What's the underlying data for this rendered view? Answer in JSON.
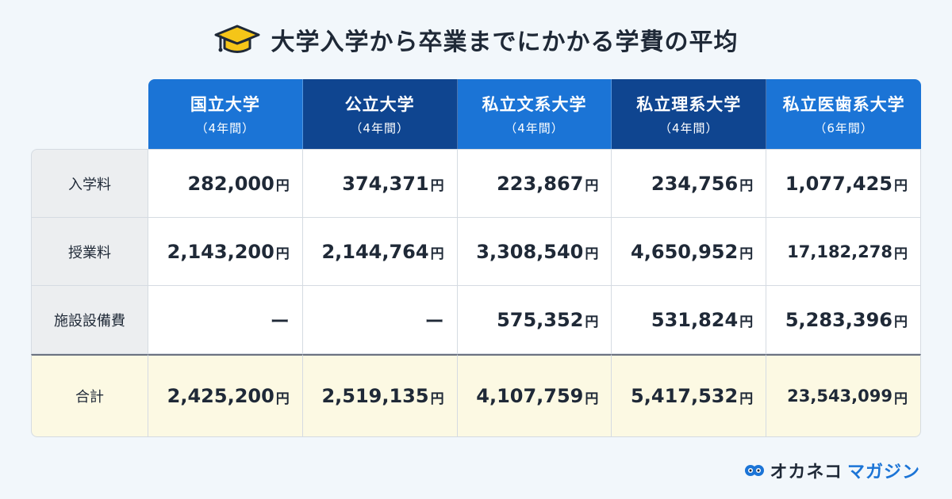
{
  "title": "大学入学から卒業までにかかる学費の平均",
  "icons": {
    "title_icon": "graduation-cap-icon",
    "brand_icon": "owl-logo-icon"
  },
  "colors": {
    "header_light": "#1b74d6",
    "header_dark": "#0f4590",
    "total_bg": "#fcf9e3",
    "row_label_bg": "#eceef0"
  },
  "unit": "円",
  "columns": [
    {
      "name": "国立大学",
      "period": "（4年間）"
    },
    {
      "name": "公立大学",
      "period": "（4年間）"
    },
    {
      "name": "私立文系大学",
      "period": "（4年間）"
    },
    {
      "name": "私立理系大学",
      "period": "（4年間）"
    },
    {
      "name": "私立医歯系大学",
      "period": "（6年間）"
    }
  ],
  "rows": [
    {
      "label": "入学料",
      "values": [
        "282,000",
        "374,371",
        "223,867",
        "234,756",
        "1,077,425"
      ]
    },
    {
      "label": "授業料",
      "values": [
        "2,143,200",
        "2,144,764",
        "3,308,540",
        "4,650,952",
        "17,182,278"
      ]
    },
    {
      "label": "施設設備費",
      "values": [
        "ー",
        "ー",
        "575,352",
        "531,824",
        "5,283,396"
      ]
    }
  ],
  "total": {
    "label": "合計",
    "values": [
      "2,425,200",
      "2,519,135",
      "4,107,759",
      "5,417,532",
      "23,543,099"
    ]
  },
  "brand": {
    "name": "オカネコ",
    "sub": "マガジン"
  }
}
